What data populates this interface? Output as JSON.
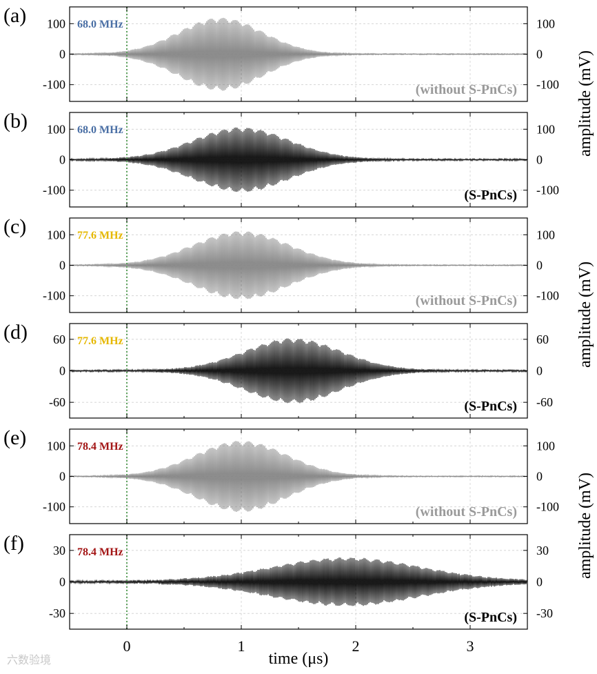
{
  "chart_data": {
    "type": "line",
    "x_range": [
      -0.5,
      3.5
    ],
    "x_ticks": [
      0,
      1,
      2,
      3
    ],
    "x_tick_labels": [
      "0",
      "1",
      "2",
      "3"
    ],
    "xlabel": "time (μs)",
    "ylabel": "amplitude (mV)",
    "grid": true,
    "reference_line": {
      "x": 0,
      "color": "#5aa05a",
      "style": "dotted"
    },
    "panels": [
      {
        "letter": "(a)",
        "freq": "68.0 MHz",
        "freq_color": "#4a6fa5",
        "condition": "(without S-PnCs)",
        "color": "#808080",
        "ylim": [
          -155,
          155
        ],
        "yticks": [
          100,
          0,
          -100
        ],
        "ytick_labels": [
          "100",
          "0",
          "-100"
        ],
        "envelope": {
          "center": 0.82,
          "amplitude": 118,
          "sigma": 0.37
        },
        "noise": 1.5
      },
      {
        "letter": "(b)",
        "freq": "68.0 MHz",
        "freq_color": "#4a6fa5",
        "condition": "(S-PnCs)",
        "color": "#000000",
        "ylim": [
          -155,
          155
        ],
        "yticks": [
          100,
          0,
          -100
        ],
        "ytick_labels": [
          "100",
          "0",
          "-100"
        ],
        "envelope": {
          "center": 1.0,
          "amplitude": 103,
          "sigma": 0.42
        },
        "noise": 2.5
      },
      {
        "letter": "(c)",
        "freq": "77.6 MHz",
        "freq_color": "#e6b800",
        "condition": "(without S-PnCs)",
        "color": "#808080",
        "ylim": [
          -155,
          155
        ],
        "yticks": [
          100,
          0,
          -100
        ],
        "ytick_labels": [
          "100",
          "0",
          "-100"
        ],
        "envelope": {
          "center": 1.0,
          "amplitude": 110,
          "sigma": 0.42
        },
        "noise": 1.5
      },
      {
        "letter": "(d)",
        "freq": "77.6 MHz",
        "freq_color": "#e6b800",
        "condition": "(S-PnCs)",
        "color": "#000000",
        "ylim": [
          -90,
          90
        ],
        "yticks": [
          60,
          0,
          -60
        ],
        "ytick_labels": [
          "60",
          "0",
          "-60"
        ],
        "envelope": {
          "center": 1.45,
          "amplitude": 60,
          "sigma": 0.42
        },
        "noise": 1.5
      },
      {
        "letter": "(e)",
        "freq": "78.4 MHz",
        "freq_color": "#a31515",
        "condition": "(without S-PnCs)",
        "color": "#808080",
        "ylim": [
          -155,
          155
        ],
        "yticks": [
          100,
          0,
          -100
        ],
        "ytick_labels": [
          "100",
          "0",
          "-100"
        ],
        "envelope": {
          "center": 1.0,
          "amplitude": 115,
          "sigma": 0.4
        },
        "noise": 1.5
      },
      {
        "letter": "(f)",
        "freq": "78.4 MHz",
        "freq_color": "#a31515",
        "condition": "(S-PnCs)",
        "color": "#000000",
        "ylim": [
          -45,
          45
        ],
        "yticks": [
          30,
          0,
          -30
        ],
        "ytick_labels": [
          "30",
          "0",
          "-30"
        ],
        "envelope": {
          "center": 1.92,
          "amplitude": 22,
          "sigma": 0.65
        },
        "noise": 1.0
      }
    ]
  },
  "watermark": "六数验境"
}
